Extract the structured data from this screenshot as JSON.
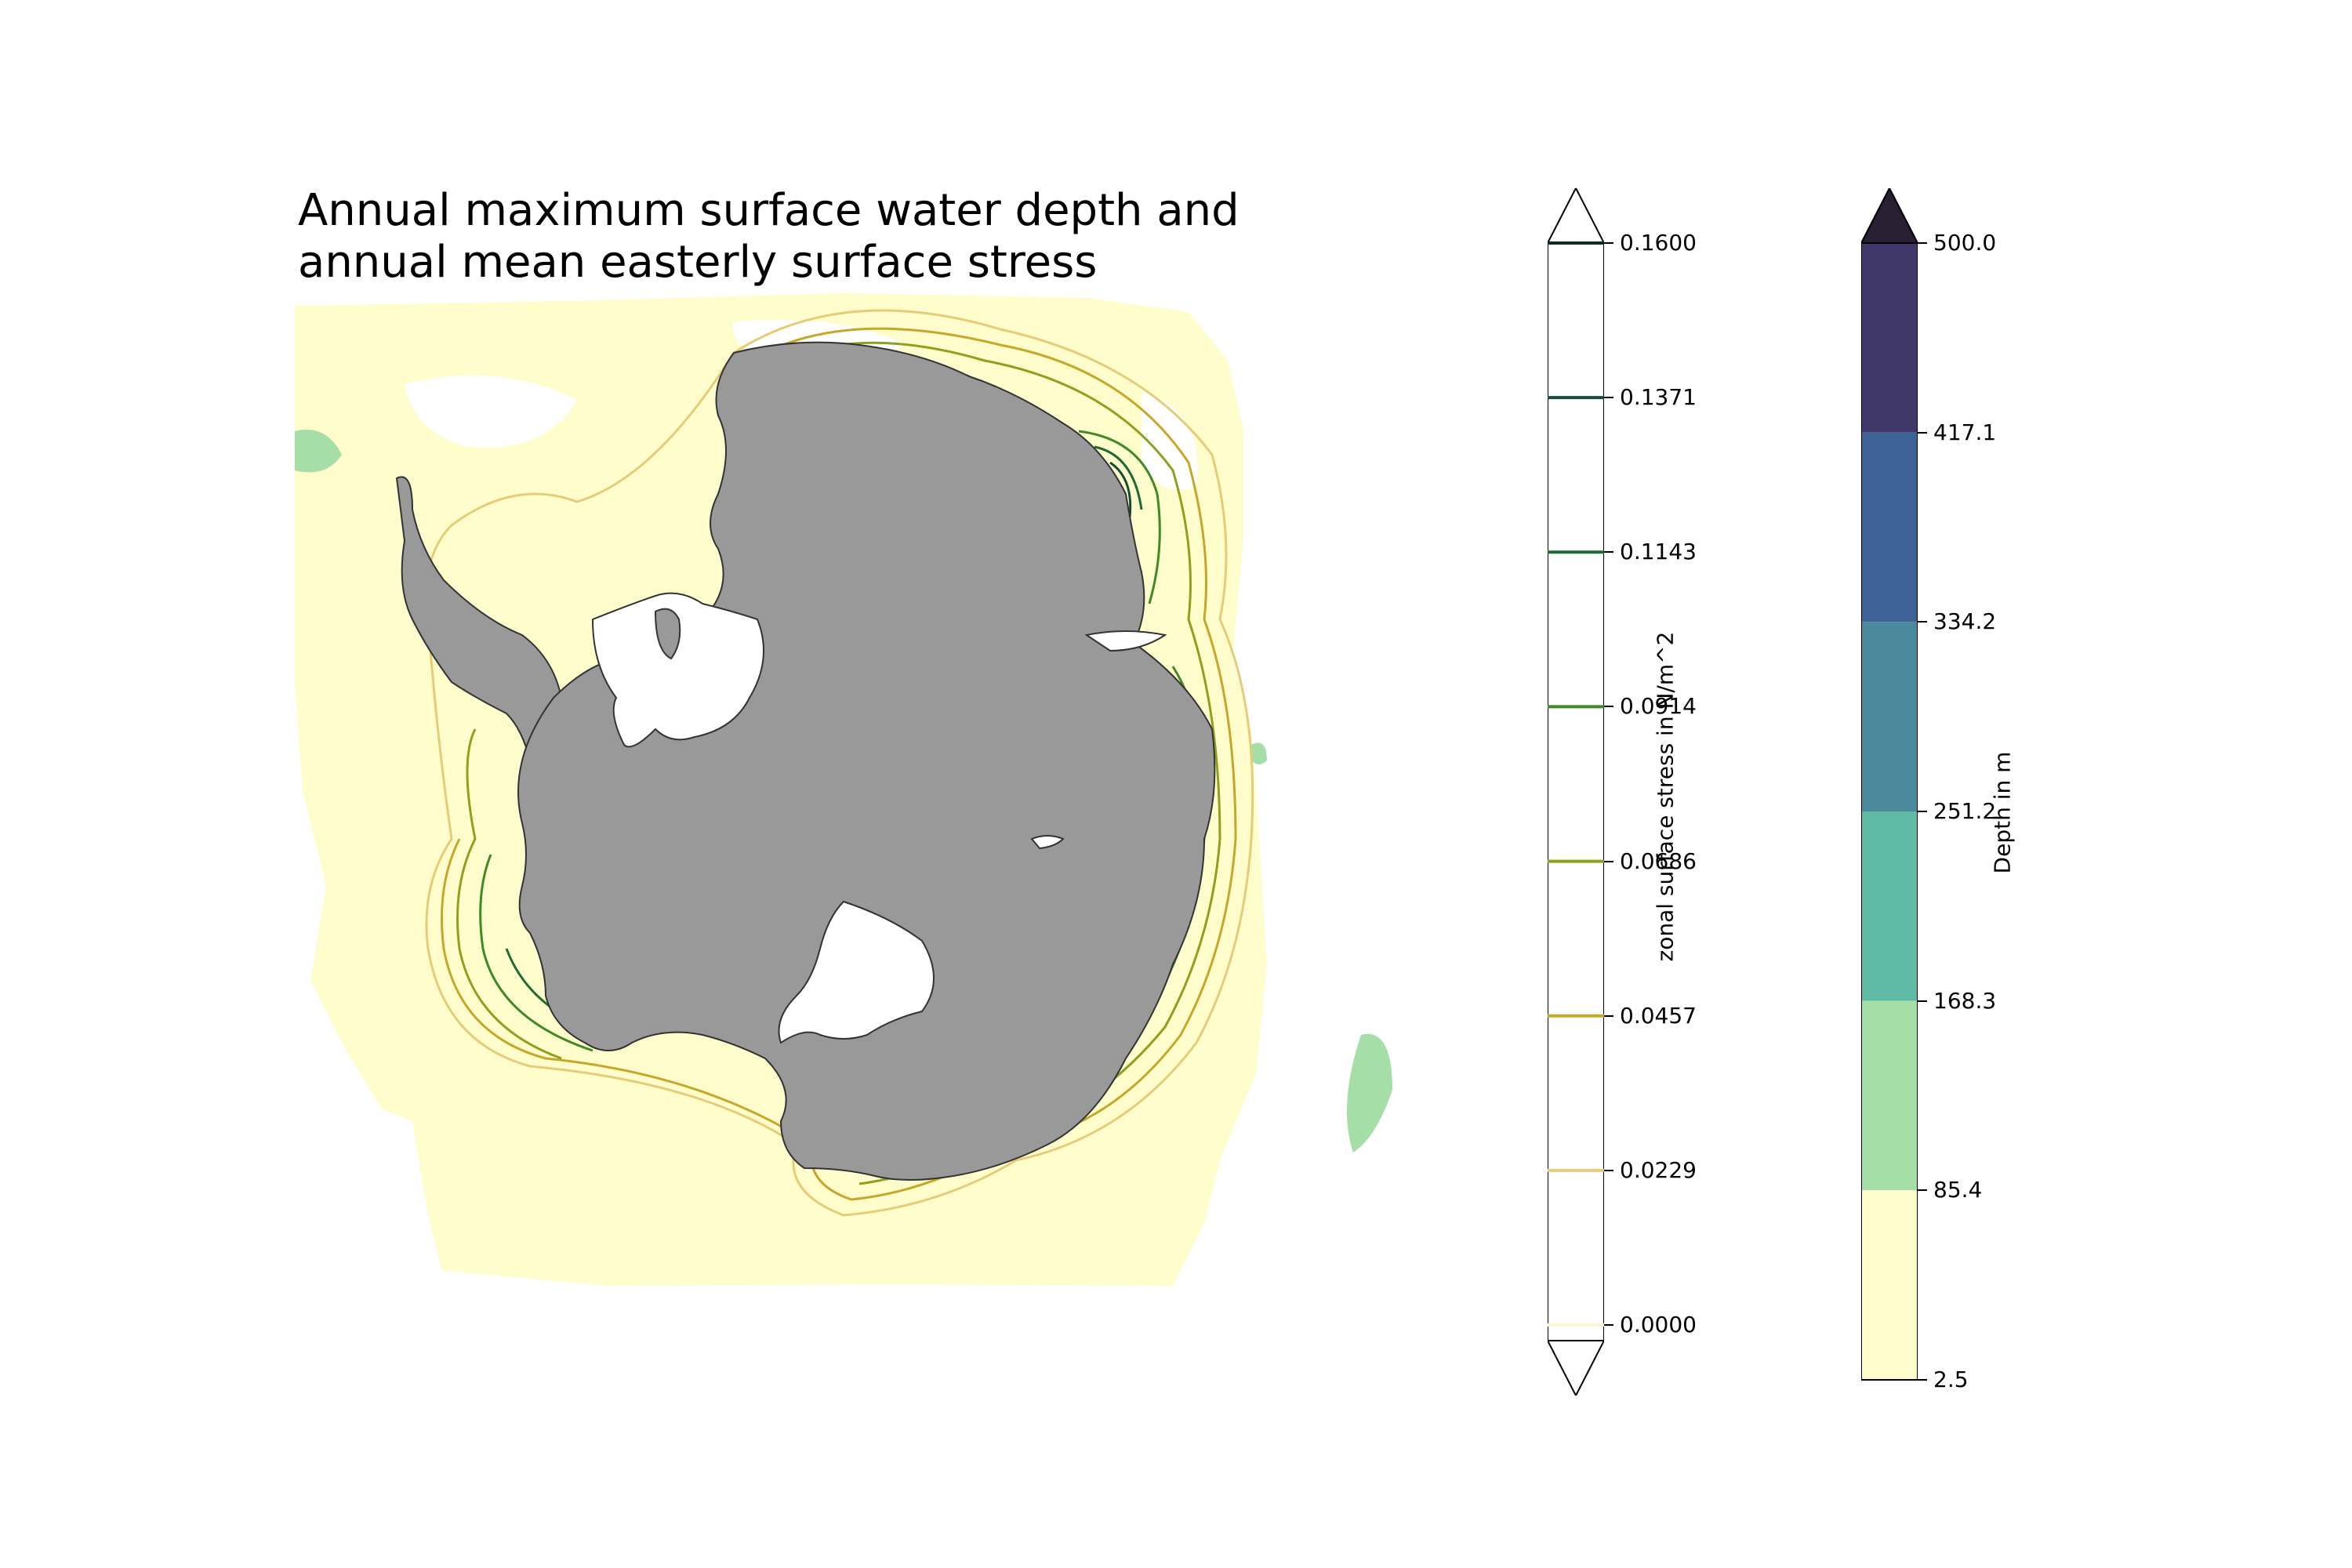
{
  "title": {
    "line1": "Annual maximum surface water depth and",
    "line2": "annual mean easterly surface stress"
  },
  "map": {
    "land_color": "#999999",
    "ice_shelf_color": "#ffffff",
    "coast_color": "#333333"
  },
  "stress_colorbar": {
    "label": "zonal surface stress in N/m^2",
    "extend": "both",
    "levels": [
      {
        "value": "0.1600",
        "color": "#0d2d1f"
      },
      {
        "value": "0.1371",
        "color": "#134e34"
      },
      {
        "value": "0.1143",
        "color": "#1f6b33"
      },
      {
        "value": "0.0914",
        "color": "#3f8a24"
      },
      {
        "value": "0.0686",
        "color": "#8ea01d"
      },
      {
        "value": "0.0457",
        "color": "#c6a729"
      },
      {
        "value": "0.0229",
        "color": "#e6cc78"
      },
      {
        "value": "0.0000",
        "color": "#fbf5d5"
      }
    ]
  },
  "depth_colorbar": {
    "label": "Depth in m",
    "extend": "max",
    "extend_color": "#2a1e33",
    "ticks": [
      "500.0",
      "417.1",
      "334.2",
      "251.2",
      "168.3",
      "85.4",
      "2.5"
    ],
    "bands": [
      {
        "from": "417.1",
        "to": "500.0",
        "color": "#3f3868"
      },
      {
        "from": "334.2",
        "to": "417.1",
        "color": "#3f6297"
      },
      {
        "from": "251.2",
        "to": "334.2",
        "color": "#4a8a9c"
      },
      {
        "from": "168.3",
        "to": "251.2",
        "color": "#5fbba6"
      },
      {
        "from": "85.4",
        "to": "168.3",
        "color": "#a5dea6"
      },
      {
        "from": "2.5",
        "to": "85.4",
        "color": "#fffdcb"
      }
    ]
  }
}
